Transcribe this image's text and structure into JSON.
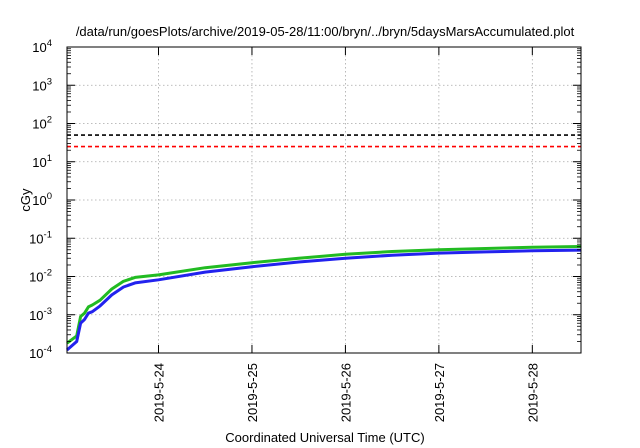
{
  "chart_data": {
    "type": "line",
    "title": "/data/run/goesPlots/archive/2019-05-28/11:00/bryn/../bryn/5daysMarsAccumulated.plot",
    "xlabel": "Coordinated Universal Time (UTC)",
    "ylabel": "cGy",
    "y_scale": "log",
    "ylim": [
      0.0001,
      10000
    ],
    "xlim": [
      "2019-05-23 00:30",
      "2019-05-28 12:30"
    ],
    "grid": true,
    "legend": "none",
    "x_ticks": [
      "2019-5-24",
      "2019-5-25",
      "2019-5-26",
      "2019-5-27",
      "2019-5-28"
    ],
    "y_ticks": [
      {
        "base": "10",
        "exp": "-4",
        "value": 0.0001
      },
      {
        "base": "10",
        "exp": "-3",
        "value": 0.001
      },
      {
        "base": "10",
        "exp": "-2",
        "value": 0.01
      },
      {
        "base": "10",
        "exp": "-1",
        "value": 0.1
      },
      {
        "base": "10",
        "exp": "0",
        "value": 1
      },
      {
        "base": "10",
        "exp": "1",
        "value": 10
      },
      {
        "base": "10",
        "exp": "2",
        "value": 100
      },
      {
        "base": "10",
        "exp": "3",
        "value": 1000
      },
      {
        "base": "10",
        "exp": "4",
        "value": 10000
      }
    ],
    "reference_lines": [
      {
        "value": 50,
        "color": "#000000",
        "style": "dashed"
      },
      {
        "value": 25,
        "color": "#ff0000",
        "style": "dashed"
      }
    ],
    "series": [
      {
        "color": "#22bb22",
        "x": [
          "2019-05-23 00:30",
          "2019-05-23 03:00",
          "2019-05-23 04:00",
          "2019-05-23 05:00",
          "2019-05-23 06:00",
          "2019-05-23 07:00",
          "2019-05-23 09:00",
          "2019-05-23 12:00",
          "2019-05-23 15:00",
          "2019-05-23 18:00",
          "2019-05-24 00:00",
          "2019-05-24 12:00",
          "2019-05-25 00:00",
          "2019-05-25 12:00",
          "2019-05-26 00:00",
          "2019-05-26 12:00",
          "2019-05-27 00:00",
          "2019-05-27 12:00",
          "2019-05-28 00:00",
          "2019-05-28 12:30"
        ],
        "y": [
          0.00018,
          0.00028,
          0.0009,
          0.0011,
          0.0016,
          0.0018,
          0.0024,
          0.0047,
          0.0075,
          0.0095,
          0.011,
          0.017,
          0.023,
          0.03,
          0.038,
          0.045,
          0.05,
          0.054,
          0.058,
          0.061
        ]
      },
      {
        "color": "#2222ee",
        "x": [
          "2019-05-23 00:30",
          "2019-05-23 03:00",
          "2019-05-23 04:00",
          "2019-05-23 05:00",
          "2019-05-23 06:00",
          "2019-05-23 07:00",
          "2019-05-23 09:00",
          "2019-05-23 12:00",
          "2019-05-23 15:00",
          "2019-05-23 18:00",
          "2019-05-24 00:00",
          "2019-05-24 12:00",
          "2019-05-25 00:00",
          "2019-05-25 12:00",
          "2019-05-26 00:00",
          "2019-05-26 12:00",
          "2019-05-27 00:00",
          "2019-05-27 12:00",
          "2019-05-28 00:00",
          "2019-05-28 12:30"
        ],
        "y": [
          0.00012,
          0.0002,
          0.0006,
          0.00075,
          0.0011,
          0.0012,
          0.0017,
          0.0033,
          0.0053,
          0.0068,
          0.0082,
          0.013,
          0.018,
          0.024,
          0.03,
          0.036,
          0.041,
          0.044,
          0.047,
          0.049
        ]
      }
    ]
  }
}
